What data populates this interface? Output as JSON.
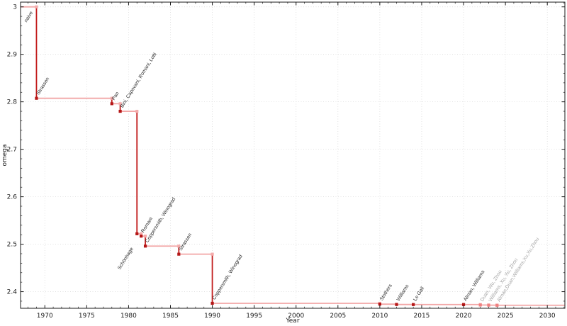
{
  "chart_data": {
    "type": "line",
    "subtype": "step",
    "title": "",
    "xlabel": "Year",
    "ylabel": "omega",
    "xlim": [
      1967.1,
      2032.1
    ],
    "ylim": [
      2.365,
      3.01
    ],
    "grid": "dotted",
    "legend": "none",
    "x_major_ticks": [
      1970,
      1975,
      1980,
      1985,
      1990,
      1995,
      2000,
      2005,
      2010,
      2015,
      2020,
      2025,
      2030
    ],
    "x_minor_step": 1,
    "y_major_ticks": [
      {
        "value": 2.4,
        "label": "2.4"
      },
      {
        "value": 2.5,
        "label": "2.5"
      },
      {
        "value": 2.6,
        "label": "2.6"
      },
      {
        "value": 2.7,
        "label": "2.7"
      },
      {
        "value": 2.8,
        "label": "2.8"
      },
      {
        "value": 2.9,
        "label": "2.9"
      },
      {
        "value": 3.0,
        "label": "3"
      }
    ],
    "y_minor_step": 0.02,
    "points": [
      {
        "year": null,
        "omega": 3.0,
        "label": "naive",
        "confirmed": true,
        "label_side": "below",
        "label_offset": [
          -5,
          8
        ]
      },
      {
        "year": 1969,
        "omega": 2.8074,
        "label": "Strassen",
        "confirmed": true,
        "label_side": "above"
      },
      {
        "year": 1978,
        "omega": 2.796,
        "label": "Pan",
        "confirmed": true,
        "label_side": "above"
      },
      {
        "year": 1979,
        "omega": 2.78,
        "label": "Bini, Capovani, Romani, Lotti",
        "confirmed": true,
        "label_side": "above"
      },
      {
        "year": 1981,
        "omega": 2.522,
        "label": "Schönhage",
        "confirmed": true,
        "label_side": "below"
      },
      {
        "year": 1981.5,
        "omega": 2.517,
        "label": "Romani",
        "confirmed": true,
        "label_side": "above"
      },
      {
        "year": 1982,
        "omega": 2.496,
        "label": "Coppersmith, Winograd",
        "confirmed": true,
        "label_side": "above"
      },
      {
        "year": 1986,
        "omega": 2.479,
        "label": "Strassen",
        "confirmed": true,
        "label_side": "above"
      },
      {
        "year": 1990,
        "omega": 2.3755,
        "label": "Coppersmith, Winograd",
        "confirmed": true,
        "label_side": "above"
      },
      {
        "year": 2010,
        "omega": 2.3737,
        "label": "Stothers",
        "confirmed": true,
        "label_side": "above"
      },
      {
        "year": 2012,
        "omega": 2.3729,
        "label": "Williams",
        "confirmed": true,
        "label_side": "above"
      },
      {
        "year": 2014,
        "omega": 2.3728639,
        "label": "Le Gall",
        "confirmed": true,
        "label_side": "above"
      },
      {
        "year": 2020,
        "omega": 2.3728596,
        "label": "Alman, Williams",
        "confirmed": true,
        "label_side": "above"
      },
      {
        "year": 2022,
        "omega": 2.371866,
        "label": "Duan, Wu, Zhou",
        "confirmed": false,
        "label_side": "above"
      },
      {
        "year": 2023,
        "omega": 2.371552,
        "label": "Williams, Xu, Xu, Zhou",
        "confirmed": false,
        "label_side": "above"
      },
      {
        "year": 2024,
        "omega": 2.371339,
        "label": "Alman,Duan,Williams,Xu,Xu,Zhou",
        "confirmed": false,
        "label_side": "above"
      }
    ]
  },
  "colors": {
    "line_dark": "#c21d1d",
    "line_light": "#f2a6a6",
    "marker_confirmed": "#b51717",
    "marker_corner": "#f4abab",
    "marker_unconfirmed": "#f08080",
    "label_confirmed": "#2b2b2b",
    "label_unconfirmed": "#a6a6a6",
    "grid": "#dcdcdc",
    "axis": "#1a1a1a",
    "background": "#ffffff"
  }
}
